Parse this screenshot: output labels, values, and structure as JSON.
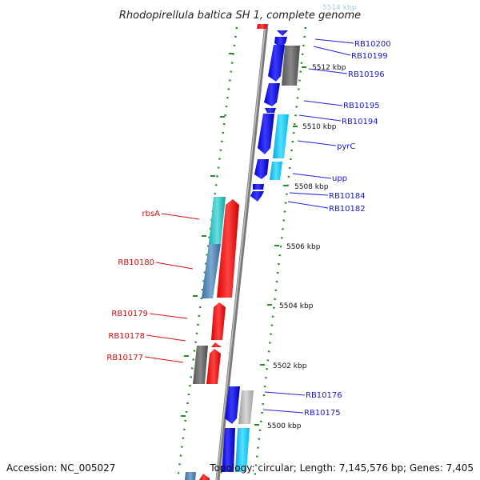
{
  "title": "Rhodopirellula baltica SH 1, complete genome",
  "accession": "Accession: NC_005027",
  "topology_info": "Topology: circular; Length: 7,145,576 bp; Genes: 7,405",
  "colors": {
    "backbone": "#888888",
    "tick_dots": "#2a8a2a",
    "forward_label": "#1a1acc",
    "reverse_label": "#cc1111"
  },
  "kbp_ticks": [
    "5514 kbp",
    "5512 kbp",
    "5510 kbp",
    "5508 kbp",
    "5506 kbp",
    "5504 kbp",
    "5502 kbp",
    "5500 kbp"
  ],
  "forward_labels": [
    "RB10200",
    "RB10199",
    "RB10196",
    "RB10195",
    "RB10194",
    "pyrC",
    "upp",
    "RB10184",
    "RB10182",
    "RB10176",
    "RB10175"
  ],
  "reverse_labels": [
    "rbsA",
    "RB10180",
    "RB10179",
    "RB10178",
    "RB10177"
  ]
}
